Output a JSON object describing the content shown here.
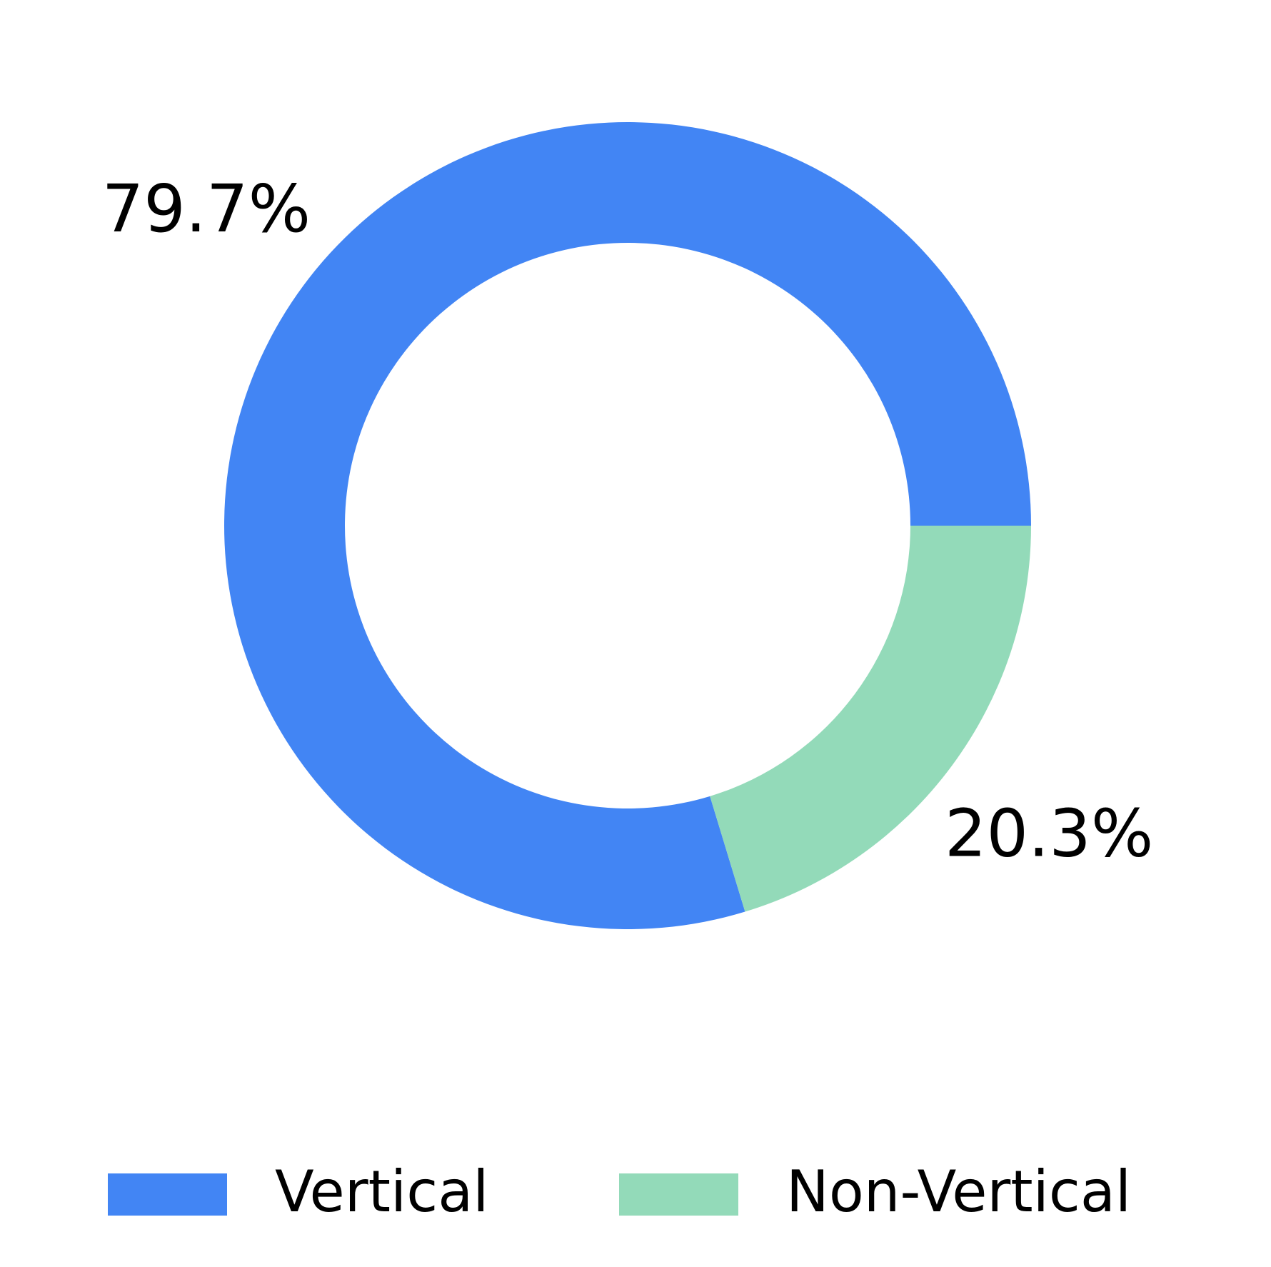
{
  "chart_data": {
    "type": "donut",
    "categories": [
      "Vertical",
      "Non-Vertical"
    ],
    "values": [
      79.7,
      20.3
    ],
    "value_labels": [
      "79.7%",
      "20.3%"
    ],
    "colors": [
      "#4285f4",
      "#93dab9"
    ],
    "legend": "bottom"
  }
}
